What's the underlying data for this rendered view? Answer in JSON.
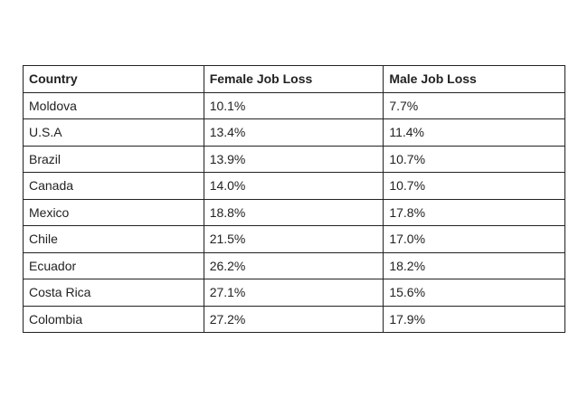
{
  "table": {
    "header": [
      "Country",
      "Female Job Loss",
      "Male Job Loss"
    ],
    "rows": [
      [
        "Moldova",
        "10.1%",
        "7.7%"
      ],
      [
        "U.S.A",
        "13.4%",
        "11.4%"
      ],
      [
        "Brazil",
        "13.9%",
        "10.7%"
      ],
      [
        "Canada",
        "14.0%",
        "10.7%"
      ],
      [
        "Mexico",
        "18.8%",
        "17.8%"
      ],
      [
        "Chile",
        "21.5%",
        "17.0%"
      ],
      [
        "Ecuador",
        "26.2%",
        "18.2%"
      ],
      [
        "Costa Rica",
        "27.1%",
        "15.6%"
      ],
      [
        "Colombia",
        "27.2%",
        "17.9%"
      ]
    ]
  }
}
